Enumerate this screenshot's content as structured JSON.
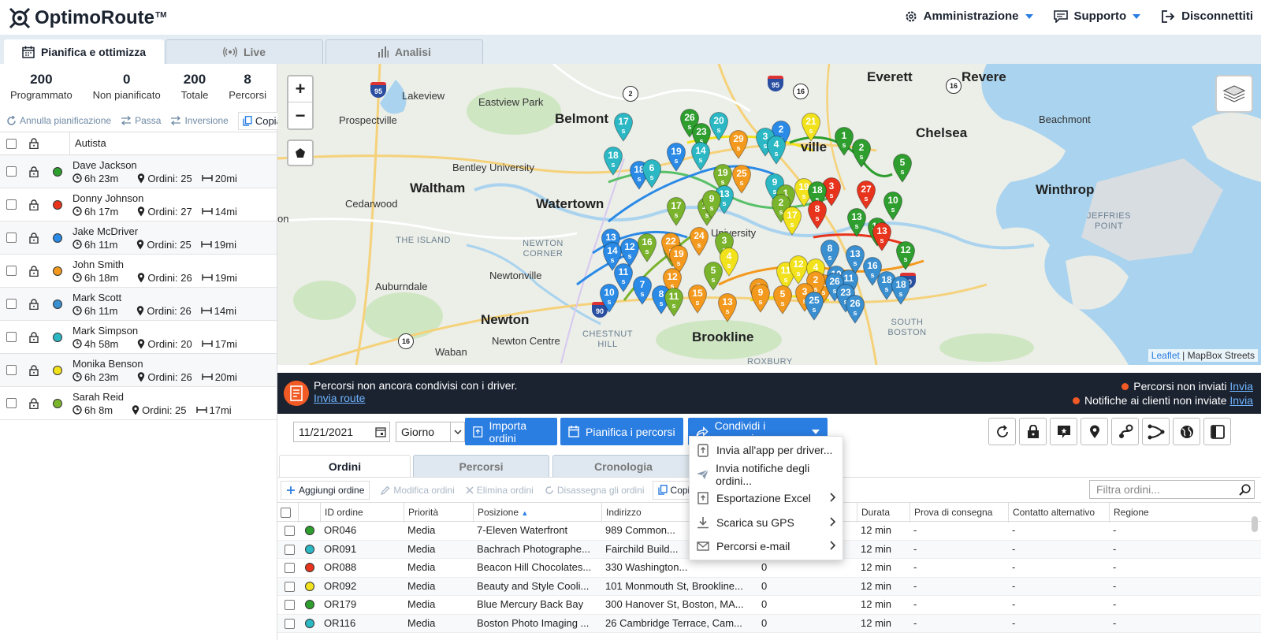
{
  "app": {
    "name": "OptimoRoute",
    "tm": "TM"
  },
  "topnav": {
    "admin": "Amministrazione",
    "support": "Supporto",
    "logout": "Disconnettiti"
  },
  "main_tabs": [
    {
      "label": "Pianifica e ottimizza",
      "icon": "calendar-icon",
      "active": true
    },
    {
      "label": "Live",
      "icon": "broadcast-icon",
      "active": false
    },
    {
      "label": "Analisi",
      "icon": "bar-chart-icon",
      "active": false
    }
  ],
  "stats": [
    {
      "num": "200",
      "label": "Programmato"
    },
    {
      "num": "0",
      "label": "Non pianificato"
    },
    {
      "num": "200",
      "label": "Totale"
    },
    {
      "num": "8",
      "label": "Percorsi"
    }
  ],
  "plan_actions": {
    "undo": "Annulla pianificazione",
    "swap": "Passa",
    "reverse": "Inversione",
    "copy": "Copia"
  },
  "drivers_header": "Autista",
  "drivers": [
    {
      "name": "Dave Jackson",
      "time": "6h 23m",
      "orders": "Ordini: 25",
      "dist": "20mi",
      "color": "#2e9e2e"
    },
    {
      "name": "Donny Johnson",
      "time": "6h 17m",
      "orders": "Ordini: 27",
      "dist": "14mi",
      "color": "#e8341c"
    },
    {
      "name": "Jake McDriver",
      "time": "6h 11m",
      "orders": "Ordini: 25",
      "dist": "19mi",
      "color": "#2a8ae6"
    },
    {
      "name": "John Smith",
      "time": "6h 18m",
      "orders": "Ordini: 26",
      "dist": "19mi",
      "color": "#f39a1e"
    },
    {
      "name": "Mark Scott",
      "time": "6h 11m",
      "orders": "Ordini: 26",
      "dist": "14mi",
      "color": "#3a8fd0"
    },
    {
      "name": "Mark Simpson",
      "time": "4h 58m",
      "orders": "Ordini: 20",
      "dist": "17mi",
      "color": "#2bb8c4"
    },
    {
      "name": "Monika Benson",
      "time": "6h 23m",
      "orders": "Ordini: 26",
      "dist": "20mi",
      "color": "#f2e21c"
    },
    {
      "name": "Sarah Reid",
      "time": "6h 8m",
      "orders": "Ordini: 25",
      "dist": "17mi",
      "color": "#7ab32c"
    }
  ],
  "map": {
    "places": [
      {
        "t": "Everett",
        "cls": "big"
      },
      {
        "t": "Revere",
        "cls": "big"
      },
      {
        "t": "Chelsea",
        "cls": "big"
      },
      {
        "t": "Winthrop",
        "cls": "big"
      },
      {
        "t": "Waltham",
        "cls": "big"
      },
      {
        "t": "Watertown",
        "cls": "big"
      },
      {
        "t": "Newton",
        "cls": "big"
      },
      {
        "t": "Brookline",
        "cls": "big"
      },
      {
        "t": "Belmont",
        "cls": "big"
      },
      {
        "t": "Lakeview",
        "cls": ""
      },
      {
        "t": "Eastview Park",
        "cls": ""
      },
      {
        "t": "Prospectville",
        "cls": ""
      },
      {
        "t": "Beachmont",
        "cls": ""
      },
      {
        "t": "Bentley University",
        "cls": ""
      },
      {
        "t": "Cedarwood",
        "cls": ""
      },
      {
        "t": "Auburndale",
        "cls": ""
      },
      {
        "t": "Newtonville",
        "cls": ""
      },
      {
        "t": "Newton Centre",
        "cls": ""
      },
      {
        "t": "Waban",
        "cls": ""
      },
      {
        "t": "THE ISLAND",
        "cls": "sm"
      },
      {
        "t": "NEWTON CORNER",
        "cls": "sm"
      },
      {
        "t": "CHESTNUT HILL",
        "cls": "sm"
      },
      {
        "t": "SOUTH BOSTON",
        "cls": "sm"
      },
      {
        "t": "JEFFRIES POINT",
        "cls": "sm"
      },
      {
        "t": "ROXBURY",
        "cls": "sm"
      },
      {
        "t": "University",
        "cls": ""
      },
      {
        "t": "ville",
        "cls": "big"
      },
      {
        "t": "on",
        "cls": ""
      }
    ],
    "highway_shields": [
      "95",
      "2",
      "16",
      "95",
      "16",
      "90",
      "16",
      "90"
    ],
    "attribution_link": "Leaflet",
    "attribution_text": "| MapBox Streets",
    "zoom_in": "+",
    "zoom_out": "−",
    "pin_sub": "s",
    "pins": [
      {
        "n": "17",
        "c": "#2bb8c4"
      },
      {
        "n": "26",
        "c": "#2e9e2e"
      },
      {
        "n": "23",
        "c": "#2e9e2e"
      },
      {
        "n": "20",
        "c": "#2bb8c4"
      },
      {
        "n": "21",
        "c": "#f2e21c"
      },
      {
        "n": "2",
        "c": "#2a8ae6"
      },
      {
        "n": "1",
        "c": "#2e9e2e"
      },
      {
        "n": "2",
        "c": "#2e9e2e"
      },
      {
        "n": "5",
        "c": "#2e9e2e"
      },
      {
        "n": "18",
        "c": "#2bb8c4"
      },
      {
        "n": "19",
        "c": "#2a8ae6"
      },
      {
        "n": "18",
        "c": "#2a8ae6"
      },
      {
        "n": "6",
        "c": "#2bb8c4"
      },
      {
        "n": "14",
        "c": "#2bb8c4"
      },
      {
        "n": "29",
        "c": "#f39a1e"
      },
      {
        "n": "3",
        "c": "#2bb8c4"
      },
      {
        "n": "4",
        "c": "#2bb8c4"
      },
      {
        "n": "19",
        "c": "#7ab32c"
      },
      {
        "n": "25",
        "c": "#f39a1e"
      },
      {
        "n": "9",
        "c": "#2bb8c4"
      },
      {
        "n": "19",
        "c": "#f2e21c"
      },
      {
        "n": "3",
        "c": "#e8341c"
      },
      {
        "n": "27",
        "c": "#e8341c"
      },
      {
        "n": "18",
        "c": "#2e9e2e"
      },
      {
        "n": "1",
        "c": "#7ab32c"
      },
      {
        "n": "10",
        "c": "#2e9e2e"
      },
      {
        "n": "13",
        "c": "#2bb8c4"
      },
      {
        "n": "17",
        "c": "#7ab32c"
      },
      {
        "n": "18",
        "c": "#7ab32c"
      },
      {
        "n": "2",
        "c": "#7ab32c"
      },
      {
        "n": "8",
        "c": "#e8341c"
      },
      {
        "n": "17",
        "c": "#f2e21c"
      },
      {
        "n": "13",
        "c": "#2e9e2e"
      },
      {
        "n": "12",
        "c": "#2e9e2e"
      },
      {
        "n": "13",
        "c": "#2a8ae6"
      },
      {
        "n": "14",
        "c": "#2a8ae6"
      },
      {
        "n": "12",
        "c": "#2a8ae6"
      },
      {
        "n": "16",
        "c": "#7ab32c"
      },
      {
        "n": "5",
        "c": "#7ab32c"
      },
      {
        "n": "22",
        "c": "#f39a1e"
      },
      {
        "n": "19",
        "c": "#f39a1e"
      },
      {
        "n": "24",
        "c": "#f39a1e"
      },
      {
        "n": "3",
        "c": "#7ab32c"
      },
      {
        "n": "4",
        "c": "#f2e21c"
      },
      {
        "n": "8",
        "c": "#3a8fd0"
      },
      {
        "n": "13",
        "c": "#3a8fd0"
      },
      {
        "n": "16",
        "c": "#3a8fd0"
      },
      {
        "n": "11",
        "c": "#2a8ae6"
      },
      {
        "n": "12",
        "c": "#f39a1e"
      },
      {
        "n": "5",
        "c": "#7ab32c"
      },
      {
        "n": "11",
        "c": "#f2e21c"
      },
      {
        "n": "12",
        "c": "#f2e21c"
      },
      {
        "n": "4",
        "c": "#f2e21c"
      },
      {
        "n": "1",
        "c": "#f39a1e"
      },
      {
        "n": "10",
        "c": "#3a8fd0"
      },
      {
        "n": "11",
        "c": "#3a8fd0"
      },
      {
        "n": "18",
        "c": "#3a8fd0"
      },
      {
        "n": "7",
        "c": "#2a8ae6"
      },
      {
        "n": "8",
        "c": "#2a8ae6"
      },
      {
        "n": "11",
        "c": "#7ab32c"
      },
      {
        "n": "15",
        "c": "#f39a1e"
      },
      {
        "n": "8",
        "c": "#f39a1e"
      },
      {
        "n": "2",
        "c": "#f39a1e"
      },
      {
        "n": "26",
        "c": "#3a8fd0"
      },
      {
        "n": "23",
        "c": "#3a8fd0"
      },
      {
        "n": "18",
        "c": "#3a8fd0"
      },
      {
        "n": "10",
        "c": "#2a8ae6"
      },
      {
        "n": "13",
        "c": "#f39a1e"
      },
      {
        "n": "9",
        "c": "#f39a1e"
      },
      {
        "n": "5",
        "c": "#f39a1e"
      },
      {
        "n": "3",
        "c": "#f39a1e"
      },
      {
        "n": "25",
        "c": "#3a8fd0"
      },
      {
        "n": "26",
        "c": "#3a8fd0"
      },
      {
        "n": "12",
        "c": "#2e9e2e"
      },
      {
        "n": "13",
        "c": "#e8341c"
      },
      {
        "n": "9",
        "c": "#7ab32c"
      }
    ]
  },
  "banner": {
    "text": "Percorsi non ancora condivisi con i driver.",
    "link": "Invia route",
    "r1_text": "Percorsi non inviati",
    "r1_link": "Invia",
    "r2_text": "Notifiche ai clienti non inviate",
    "r2_link": "Invia"
  },
  "toolbar": {
    "date": "11/21/2021",
    "period": "Giorno",
    "import": "Importa ordini",
    "plan": "Pianifica i percorsi",
    "share": "Condividi i percorsi"
  },
  "share_menu": [
    {
      "label": "Invia all'app per driver...",
      "icon": "phone-send-icon",
      "sub": false
    },
    {
      "label": "Invia notifiche degli ordini...",
      "icon": "paper-plane-icon",
      "sub": false
    },
    {
      "label": "Esportazione Excel",
      "icon": "export-icon",
      "sub": true
    },
    {
      "label": "Scarica su GPS",
      "icon": "download-icon",
      "sub": true
    },
    {
      "label": "Percorsi e-mail",
      "icon": "envelope-icon",
      "sub": true
    }
  ],
  "lower_tabs": [
    {
      "label": "Ordini",
      "active": true
    },
    {
      "label": "Percorsi",
      "active": false
    },
    {
      "label": "Cronologia",
      "active": false
    }
  ],
  "order_tools": {
    "add": "Aggiungi ordine",
    "edit": "Modifica ordini",
    "delete": "Elimina ordini",
    "unassign": "Disassegna gli ordini",
    "copy": "Copia",
    "filter_placeholder": "Filtra ordini..."
  },
  "table": {
    "headers": [
      "ID ordine",
      "Priorità",
      "Posizione",
      "Indirizzo",
      "",
      "Durata",
      "Prova di consegna",
      "Contatto alternativo",
      "Regione"
    ],
    "rows": [
      {
        "color": "#2e9e2e",
        "id": "OR046",
        "prio": "Media",
        "pos": "7-Eleven Waterfront",
        "addr": "989 Common...",
        "x": "",
        "dur": "12 min",
        "pod": "-",
        "alt": "-",
        "reg": "-"
      },
      {
        "color": "#2bb8c4",
        "id": "OR091",
        "prio": "Media",
        "pos": "Bachrach Photographe...",
        "addr": "Fairchild Build...",
        "x": "",
        "dur": "12 min",
        "pod": "-",
        "alt": "-",
        "reg": "-"
      },
      {
        "color": "#e8341c",
        "id": "OR088",
        "prio": "Media",
        "pos": "Beacon Hill Chocolates...",
        "addr": "330 Washington...",
        "x": "0",
        "dur": "12 min",
        "pod": "-",
        "alt": "-",
        "reg": "-"
      },
      {
        "color": "#f2e21c",
        "id": "OR092",
        "prio": "Media",
        "pos": "Beauty and Style Cooli...",
        "addr": "101 Monmouth St, Brookline...",
        "x": "0",
        "dur": "12 min",
        "pod": "-",
        "alt": "-",
        "reg": "-"
      },
      {
        "color": "#2e9e2e",
        "id": "OR179",
        "prio": "Media",
        "pos": "Blue Mercury Back Bay",
        "addr": "300 Hanover St, Boston, MA...",
        "x": "0",
        "dur": "12 min",
        "pod": "-",
        "alt": "-",
        "reg": "-"
      },
      {
        "color": "#2bb8c4",
        "id": "OR116",
        "prio": "Media",
        "pos": "Boston Photo Imaging ...",
        "addr": "26 Cambridge Terrace, Cam...",
        "x": "0",
        "dur": "12 min",
        "pod": "-",
        "alt": "-",
        "reg": "-"
      }
    ]
  }
}
